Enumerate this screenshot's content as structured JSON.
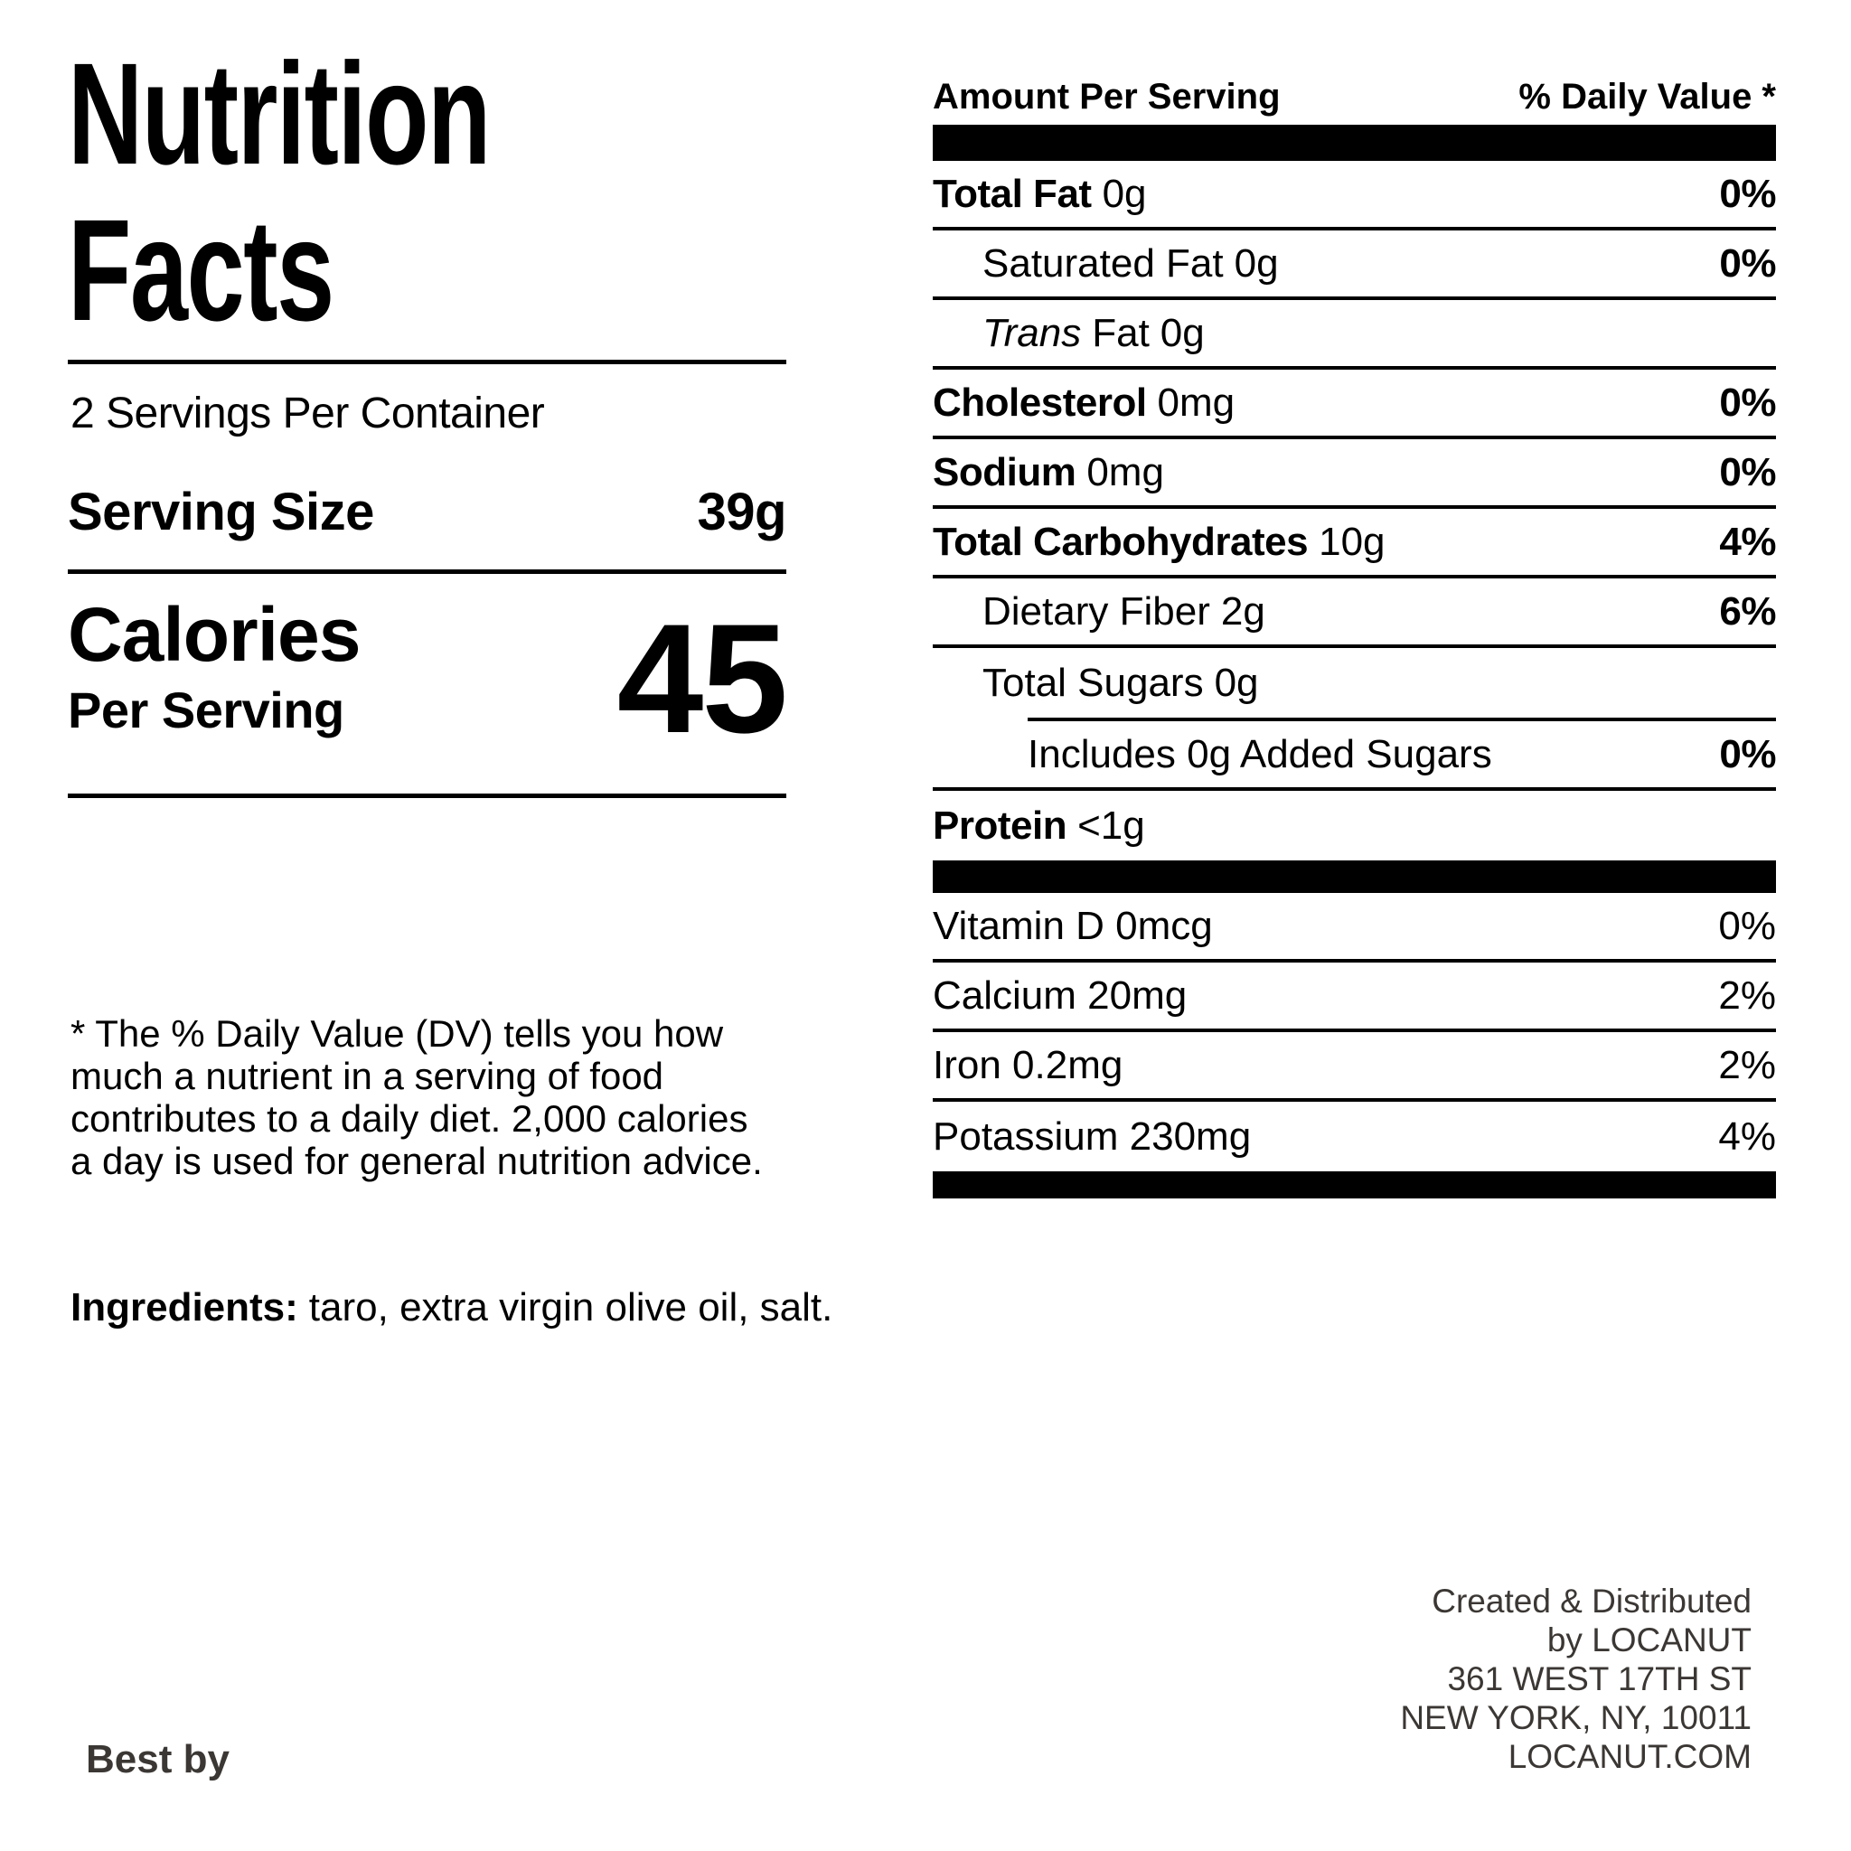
{
  "colors": {
    "ink": "#000000",
    "muted": "#3b3734"
  },
  "title": {
    "line1": "Nutrition",
    "line2": "Facts"
  },
  "serving": {
    "servings_per_container": "2 Servings Per Container",
    "serving_size_label": "Serving Size",
    "serving_size_value": "39g",
    "calories_label": "Calories",
    "calories_sub": "Per Serving",
    "calories_value": "45"
  },
  "table": {
    "header_left": "Amount Per Serving",
    "header_right": "% Daily Value *",
    "rows": [
      {
        "name": "Total Fat",
        "amount": "0g",
        "dv": "0%"
      },
      {
        "name": "Saturated Fat",
        "amount": "0g",
        "dv": "0%"
      },
      {
        "name_italic": "Trans",
        "name": "Fat",
        "amount": "0g",
        "dv": ""
      },
      {
        "name": "Cholesterol",
        "amount": "0mg",
        "dv": "0%"
      },
      {
        "name": "Sodium",
        "amount": "0mg",
        "dv": "0%"
      },
      {
        "name": "Total Carbohydrates",
        "amount": "10g",
        "dv": "4%"
      },
      {
        "name": "Dietary Fiber",
        "amount": "2g",
        "dv": "6%"
      },
      {
        "name": "Total Sugars",
        "amount": "0g",
        "dv": ""
      },
      {
        "name": "Includes 0g Added Sugars",
        "amount": "",
        "dv": "0%"
      },
      {
        "name": "Protein",
        "amount": "<1g",
        "dv": ""
      }
    ],
    "vitamins": [
      {
        "name": "Vitamin D 0mcg",
        "dv": "0%"
      },
      {
        "name": "Calcium 20mg",
        "dv": "2%"
      },
      {
        "name": "Iron 0.2mg",
        "dv": "2%"
      },
      {
        "name": "Potassium 230mg",
        "dv": "4%"
      }
    ]
  },
  "footnote": {
    "lines": [
      "* The % Daily Value (DV) tells you how",
      "much a nutrient in a serving of food",
      "contributes to a daily diet. 2,000 calories",
      "a day is used for general nutrition advice."
    ]
  },
  "ingredients": {
    "label": "Ingredients:",
    "text": "taro, extra virgin olive oil, salt."
  },
  "footer": {
    "best_by": "Best by",
    "address_lines": [
      "Created & Distributed",
      "by LOCANUT",
      "361 WEST 17TH ST",
      "NEW YORK, NY, 10011",
      "LOCANUT.COM"
    ]
  }
}
